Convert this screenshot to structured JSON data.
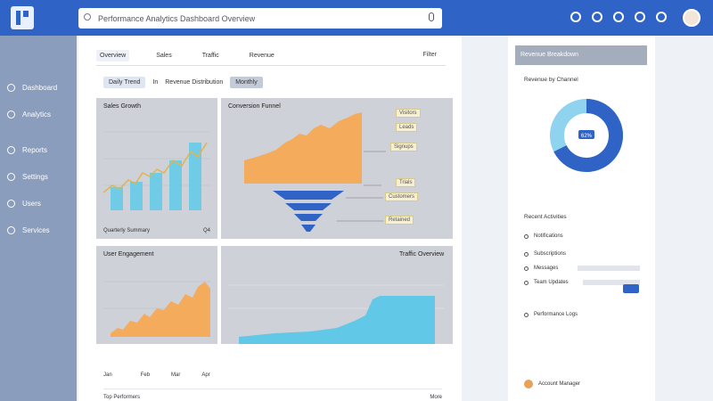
{
  "header": {
    "search_value": "Performance Analytics Dashboard Overview",
    "icons": [
      "search-icon",
      "mic-icon",
      "bell-icon",
      "settings-icon",
      "help-icon",
      "apps-icon",
      "user-icon"
    ]
  },
  "sidebar": {
    "items": [
      {
        "label": "Dashboard",
        "icon": "home-icon"
      },
      {
        "label": "Analytics",
        "icon": "chart-icon"
      },
      {
        "label": "Reports",
        "icon": "report-icon"
      },
      {
        "label": "Settings",
        "icon": "gear-icon"
      },
      {
        "label": "Users",
        "icon": "user-icon"
      },
      {
        "label": "Services",
        "icon": "service-icon"
      }
    ]
  },
  "main": {
    "tabs": [
      "Overview",
      "Sales",
      "Traffic",
      "Revenue"
    ],
    "tab_right": "Filter",
    "filters": [
      "Daily Trend",
      "In",
      "Revenue Distribution",
      "Monthly"
    ],
    "card1": {
      "title": "Sales Growth",
      "foot": "Quarterly Summary",
      "foot_r": "Q4"
    },
    "card2": {
      "title": "Conversion Funnel"
    },
    "card3": {
      "title": "User Engagement"
    },
    "card4": {
      "title": "Traffic Overview"
    },
    "funnel_labels": [
      "Visitors",
      "Leads",
      "Signups",
      "Trials",
      "Customers",
      "Retained"
    ],
    "bottom_labels": [
      "Jan",
      "Feb",
      "Mar",
      "Apr"
    ],
    "bottom2_left": "Top Performers",
    "bottom2_right": "More"
  },
  "rpanel": {
    "header": "Revenue Breakdown",
    "donut_title": "Revenue by Channel",
    "donut_center": "62%",
    "list_title": "Recent Activities",
    "list": [
      "Notifications",
      "Subscriptions",
      "Messages",
      "Team Updates",
      "Performance Logs"
    ],
    "footer": "Account Manager"
  }
}
